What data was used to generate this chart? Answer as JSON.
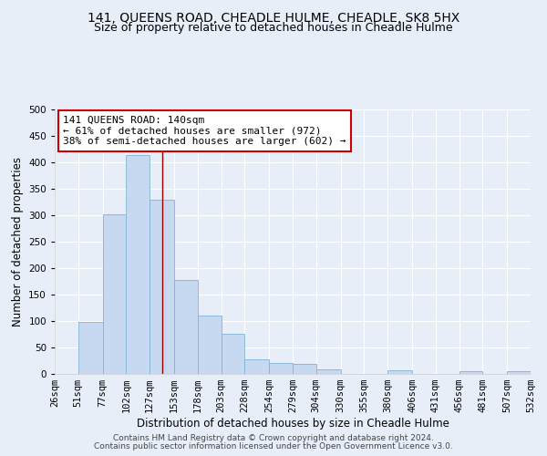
{
  "title": "141, QUEENS ROAD, CHEADLE HULME, CHEADLE, SK8 5HX",
  "subtitle": "Size of property relative to detached houses in Cheadle Hulme",
  "xlabel": "Distribution of detached houses by size in Cheadle Hulme",
  "ylabel": "Number of detached properties",
  "bin_edges": [
    26,
    51,
    77,
    102,
    127,
    153,
    178,
    203,
    228,
    254,
    279,
    304,
    330,
    355,
    380,
    406,
    431,
    456,
    481,
    507,
    532
  ],
  "bin_labels": [
    "26sqm",
    "51sqm",
    "77sqm",
    "102sqm",
    "127sqm",
    "153sqm",
    "178sqm",
    "203sqm",
    "228sqm",
    "254sqm",
    "279sqm",
    "304sqm",
    "330sqm",
    "355sqm",
    "380sqm",
    "406sqm",
    "431sqm",
    "456sqm",
    "481sqm",
    "507sqm",
    "532sqm"
  ],
  "counts": [
    0,
    98,
    302,
    413,
    330,
    178,
    111,
    76,
    28,
    20,
    19,
    9,
    0,
    0,
    7,
    0,
    0,
    5,
    0,
    5
  ],
  "bar_color": "#c6d9f0",
  "bar_edge_color": "#7fb3d3",
  "vline_x": 140,
  "vline_color": "#990000",
  "annotation_line1": "141 QUEENS ROAD: 140sqm",
  "annotation_line2": "← 61% of detached houses are smaller (972)",
  "annotation_line3": "38% of semi-detached houses are larger (602) →",
  "annotation_box_color": "#ffffff",
  "annotation_box_edge_color": "#cc0000",
  "ylim": [
    0,
    500
  ],
  "yticks": [
    0,
    50,
    100,
    150,
    200,
    250,
    300,
    350,
    400,
    450,
    500
  ],
  "footer1": "Contains HM Land Registry data © Crown copyright and database right 2024.",
  "footer2": "Contains public sector information licensed under the Open Government Licence v3.0.",
  "background_color": "#e8eef8",
  "grid_color": "#ffffff",
  "title_fontsize": 10,
  "subtitle_fontsize": 9,
  "axis_label_fontsize": 8.5,
  "tick_fontsize": 7.5,
  "annotation_fontsize": 8,
  "footer_fontsize": 6.5
}
